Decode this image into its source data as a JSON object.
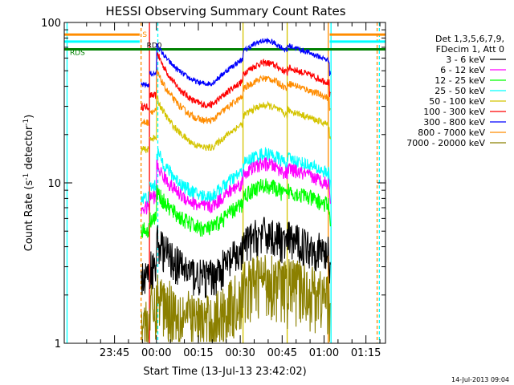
{
  "chart_data": {
    "type": "line",
    "title": "HESSI Observing Summary Count Rates",
    "xlabel": "Start Time (13-Jul-13 23:42:02)",
    "ylabel": "Count Rate (s",
    "ylabel_sup": "-1",
    "ylabel_tail": " detector",
    "ylabel_sup2": "-1",
    "ylabel_end": ")",
    "yscale": "log",
    "ylim": [
      1,
      100
    ],
    "xlim_minutes": [
      -18,
      97
    ],
    "x_ticks": [
      {
        "m": 0,
        "label": "23:45"
      },
      {
        "m": 15,
        "label": "00:00"
      },
      {
        "m": 30,
        "label": "00:15"
      },
      {
        "m": 45,
        "label": "00:30"
      },
      {
        "m": 60,
        "label": "00:45"
      },
      {
        "m": 75,
        "label": "01:00"
      },
      {
        "m": 90,
        "label": "01:15"
      }
    ],
    "y_ticks": [
      {
        "v": 1,
        "label": "1"
      },
      {
        "v": 10,
        "label": "10"
      },
      {
        "v": 100,
        "label": "100"
      }
    ],
    "legend_header": [
      "Det 1,3,5,6,7,9,",
      "FDecim 1, Att 0"
    ],
    "legend_position": "right",
    "flag_labels": [
      {
        "label": "S",
        "color": "#ff8c00"
      },
      {
        "label": "RD0",
        "color": "#000000"
      },
      {
        "label": "RDS",
        "color": "#008000"
      }
    ],
    "series": [
      {
        "name": "3 - 6 keV",
        "color": "#000000"
      },
      {
        "name": "6 - 12 keV",
        "color": "#ff00ff"
      },
      {
        "name": "12 - 25 keV",
        "color": "#00ff00"
      },
      {
        "name": "25 - 50 keV",
        "color": "#00ffff"
      },
      {
        "name": "50 - 100 keV",
        "color": "#d4c400"
      },
      {
        "name": "100 - 300 keV",
        "color": "#ff0000"
      },
      {
        "name": "300 - 800 keV",
        "color": "#0000ff"
      },
      {
        "name": "800 - 7000 keV",
        "color": "#ff8c00"
      },
      {
        "name": "7000 - 20000 keV",
        "color": "#8b8000"
      }
    ],
    "timestamp": "14-Jul-2013 09:04"
  }
}
